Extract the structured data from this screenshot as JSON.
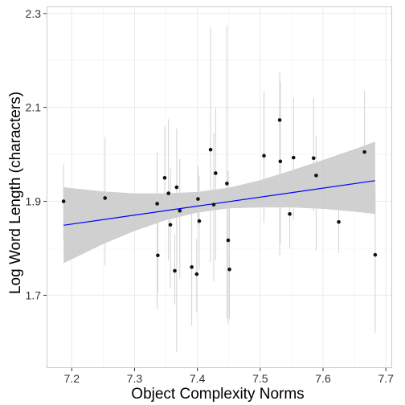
{
  "chart_data": {
    "type": "scatter",
    "title": "",
    "xlabel": "Object Complexity Norms",
    "ylabel": "Log Word Length (characters)",
    "xlim": [
      7.16,
      7.71
    ],
    "ylim": [
      1.545,
      2.315
    ],
    "x_ticks": [
      7.2,
      7.3,
      7.4,
      7.5,
      7.6,
      7.7
    ],
    "x_tick_labels": [
      "7.2",
      "7.3",
      "7.4",
      "7.5",
      "7.6",
      "7.7"
    ],
    "y_ticks": [
      1.7,
      1.9,
      2.1,
      2.3
    ],
    "y_tick_labels": [
      "1.7",
      "1.9",
      "2.1",
      "2.3"
    ],
    "grid": true,
    "legend": "none",
    "colors": {
      "points": "#111111",
      "error_bars": "#d3d3d3",
      "fit_line": "#0000ff",
      "confidence_band": "#c8c8c8",
      "grid": "#ebebeb",
      "panel_border": "#cccccc"
    },
    "fit_line": {
      "x": [
        7.187,
        7.683
      ],
      "y": [
        1.849,
        1.944
      ]
    },
    "confidence_band": {
      "x": [
        7.187,
        7.25,
        7.3,
        7.35,
        7.4,
        7.45,
        7.5,
        7.55,
        7.6,
        7.65,
        7.683
      ],
      "lower": [
        1.768,
        1.809,
        1.837,
        1.86,
        1.876,
        1.885,
        1.887,
        1.887,
        1.884,
        1.878,
        1.873
      ],
      "upper": [
        1.93,
        1.921,
        1.917,
        1.917,
        1.92,
        1.929,
        1.945,
        1.966,
        1.988,
        2.011,
        2.027
      ]
    },
    "points": [
      {
        "x": 7.187,
        "y": 1.9,
        "lo": 1.82,
        "hi": 1.98
      },
      {
        "x": 7.253,
        "y": 1.907,
        "lo": 1.763,
        "hi": 2.037
      },
      {
        "x": 7.336,
        "y": 1.895,
        "lo": 1.67,
        "hi": 2.005
      },
      {
        "x": 7.337,
        "y": 1.785,
        "lo": 1.705,
        "hi": 1.86
      },
      {
        "x": 7.348,
        "y": 1.95,
        "lo": 1.865,
        "hi": 2.06
      },
      {
        "x": 7.354,
        "y": 1.917,
        "lo": 1.775,
        "hi": 2.075
      },
      {
        "x": 7.357,
        "y": 1.85,
        "lo": 1.715,
        "hi": 1.97
      },
      {
        "x": 7.364,
        "y": 1.752,
        "lo": 1.68,
        "hi": 1.83
      },
      {
        "x": 7.367,
        "y": 1.93,
        "lo": 1.58,
        "hi": 2.055
      },
      {
        "x": 7.372,
        "y": 1.88,
        "lo": 1.735,
        "hi": 1.99
      },
      {
        "x": 7.391,
        "y": 1.76,
        "lo": 1.635,
        "hi": 1.88
      },
      {
        "x": 7.399,
        "y": 1.745,
        "lo": 1.665,
        "hi": 1.82
      },
      {
        "x": 7.401,
        "y": 1.905,
        "lo": 1.85,
        "hi": 1.975
      },
      {
        "x": 7.403,
        "y": 1.858,
        "lo": 1.755,
        "hi": 1.955
      },
      {
        "x": 7.421,
        "y": 2.01,
        "lo": 1.77,
        "hi": 2.27
      },
      {
        "x": 7.426,
        "y": 1.893,
        "lo": 1.73,
        "hi": 2.045
      },
      {
        "x": 7.429,
        "y": 1.96,
        "lo": 1.775,
        "hi": 2.1
      },
      {
        "x": 7.447,
        "y": 1.938,
        "lo": 1.65,
        "hi": 2.275
      },
      {
        "x": 7.449,
        "y": 1.817,
        "lo": 1.64,
        "hi": 1.965
      },
      {
        "x": 7.451,
        "y": 1.755,
        "lo": 1.65,
        "hi": 1.9
      },
      {
        "x": 7.506,
        "y": 1.997,
        "lo": 1.855,
        "hi": 2.135
      },
      {
        "x": 7.531,
        "y": 2.073,
        "lo": 1.785,
        "hi": 2.175
      },
      {
        "x": 7.532,
        "y": 1.985,
        "lo": 1.81,
        "hi": 2.155
      },
      {
        "x": 7.547,
        "y": 1.873,
        "lo": 1.8,
        "hi": 1.93
      },
      {
        "x": 7.553,
        "y": 1.993,
        "lo": 1.86,
        "hi": 2.12
      },
      {
        "x": 7.585,
        "y": 1.992,
        "lo": 1.88,
        "hi": 2.12
      },
      {
        "x": 7.589,
        "y": 1.955,
        "lo": 1.795,
        "hi": 2.04
      },
      {
        "x": 7.625,
        "y": 1.856,
        "lo": 1.79,
        "hi": 1.925
      },
      {
        "x": 7.666,
        "y": 2.005,
        "lo": 1.9,
        "hi": 2.135
      },
      {
        "x": 7.683,
        "y": 1.786,
        "lo": 1.62,
        "hi": 1.935
      }
    ]
  }
}
